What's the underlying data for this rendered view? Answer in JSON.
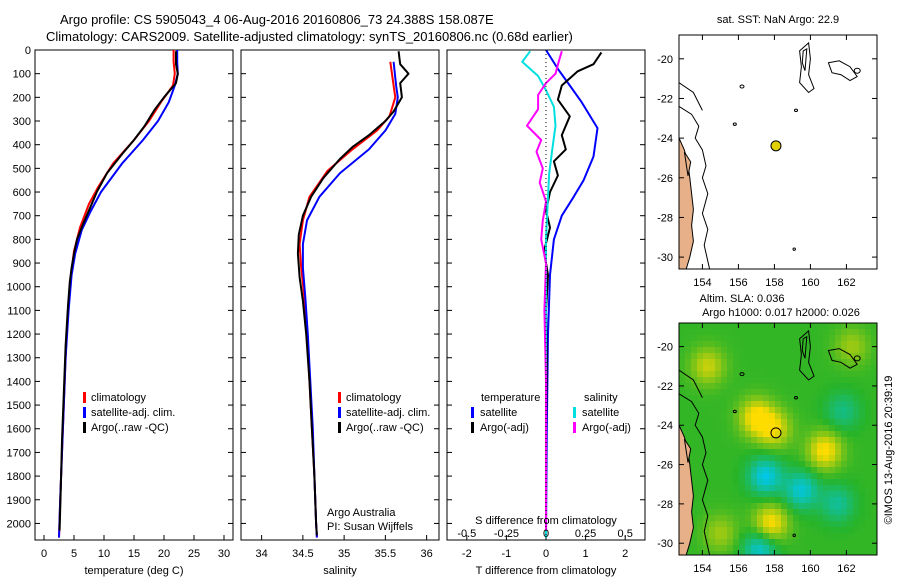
{
  "header": {
    "line1": "Argo profile: CS 5905043_4 06-Aug-2016 20160806_73 24.388S 158.087E",
    "line2": "Climatology: CARS2009. Satellite-adjusted climatology: synTS_20160806.nc (0.68d earlier)"
  },
  "colors": {
    "climatology": "#ff0000",
    "satellite": "#0000ff",
    "argo": "#000000",
    "sal_satellite": "#00e0e0",
    "sal_argo": "#ff00ff",
    "land": "#e8b088",
    "dot": "#e0d000"
  },
  "depth_ticks": [
    0,
    100,
    200,
    300,
    400,
    500,
    600,
    700,
    800,
    900,
    1000,
    1100,
    1200,
    1300,
    1400,
    1500,
    1600,
    1700,
    1800,
    1900,
    2000
  ],
  "chart_data": [
    {
      "type": "line",
      "xlabel": "temperature (deg C)",
      "xlim": [
        -1.5,
        31.5
      ],
      "xticks": [
        0,
        5,
        10,
        15,
        20,
        25,
        30
      ],
      "ylim": [
        0,
        2070
      ],
      "legend": [
        "climatology",
        "satellite-adj. clim.",
        "Argo(..raw -QC)"
      ],
      "series": [
        {
          "name": "climatology",
          "color": "#ff0000",
          "points": [
            [
              21.6,
              0
            ],
            [
              21.6,
              50
            ],
            [
              21.8,
              100
            ],
            [
              21.5,
              150
            ],
            [
              19.5,
              220
            ],
            [
              17.5,
              300
            ],
            [
              15.0,
              380
            ],
            [
              11.5,
              480
            ],
            [
              9.0,
              580
            ],
            [
              7.5,
              650
            ],
            [
              6.0,
              750
            ],
            [
              5.0,
              850
            ],
            [
              4.5,
              950
            ],
            [
              4.0,
              1100
            ],
            [
              3.6,
              1300
            ],
            [
              3.3,
              1500
            ],
            [
              3.0,
              1700
            ],
            [
              2.7,
              1900
            ],
            [
              2.5,
              2060
            ]
          ]
        },
        {
          "name": "satellite-adj. clim.",
          "color": "#0000ff",
          "points": [
            [
              22.2,
              0
            ],
            [
              22.2,
              50
            ],
            [
              22.3,
              100
            ],
            [
              21.8,
              150
            ],
            [
              20.8,
              220
            ],
            [
              19.0,
              300
            ],
            [
              16.5,
              380
            ],
            [
              13.0,
              480
            ],
            [
              9.5,
              600
            ],
            [
              7.8,
              680
            ],
            [
              6.3,
              760
            ],
            [
              5.2,
              860
            ],
            [
              4.6,
              950
            ],
            [
              4.1,
              1100
            ],
            [
              3.6,
              1300
            ],
            [
              3.3,
              1500
            ],
            [
              3.0,
              1700
            ],
            [
              2.7,
              1900
            ],
            [
              2.5,
              2060
            ]
          ]
        },
        {
          "name": "Argo(..raw -QC)",
          "color": "#000000",
          "points": [
            [
              22.0,
              5
            ],
            [
              22.0,
              60
            ],
            [
              22.3,
              100
            ],
            [
              22.0,
              140
            ],
            [
              20.0,
              200
            ],
            [
              18.5,
              250
            ],
            [
              16.8,
              320
            ],
            [
              15.0,
              380
            ],
            [
              13.0,
              440
            ],
            [
              10.5,
              520
            ],
            [
              8.8,
              600
            ],
            [
              7.8,
              660
            ],
            [
              6.6,
              730
            ],
            [
              5.5,
              800
            ],
            [
              5.0,
              860
            ],
            [
              4.6,
              920
            ],
            [
              4.3,
              980
            ],
            [
              4.0,
              1080
            ],
            [
              3.6,
              1250
            ],
            [
              3.3,
              1450
            ],
            [
              3.0,
              1650
            ],
            [
              2.8,
              1850
            ],
            [
              2.6,
              2030
            ]
          ]
        }
      ]
    },
    {
      "type": "line",
      "xlabel": "salinity",
      "xlim": [
        33.75,
        36.15
      ],
      "xticks": [
        34,
        34.5,
        35,
        35.5,
        36
      ],
      "xticklabels": [
        "34",
        "34.5",
        "35",
        "35.5",
        "36"
      ],
      "ylim": [
        0,
        2070
      ],
      "legend": [
        "climatology",
        "satellite-adj. clim.",
        "Argo(..raw -QC)"
      ],
      "annotation": [
        "Argo Australia",
        "PI: Susan Wijffels"
      ],
      "series": [
        {
          "name": "climatology",
          "color": "#ff0000",
          "points": [
            [
              35.56,
              50
            ],
            [
              35.6,
              150
            ],
            [
              35.62,
              200
            ],
            [
              35.55,
              280
            ],
            [
              35.4,
              340
            ],
            [
              35.1,
              420
            ],
            [
              34.8,
              510
            ],
            [
              34.58,
              620
            ],
            [
              34.5,
              720
            ],
            [
              34.46,
              820
            ],
            [
              34.48,
              920
            ],
            [
              34.52,
              1050
            ],
            [
              34.55,
              1200
            ],
            [
              34.58,
              1400
            ],
            [
              34.61,
              1600
            ],
            [
              34.64,
              1800
            ],
            [
              34.66,
              2000
            ],
            [
              34.67,
              2060
            ]
          ]
        },
        {
          "name": "satellite-adj. clim.",
          "color": "#0000ff",
          "points": [
            [
              35.6,
              50
            ],
            [
              35.63,
              150
            ],
            [
              35.65,
              200
            ],
            [
              35.62,
              270
            ],
            [
              35.5,
              340
            ],
            [
              35.3,
              420
            ],
            [
              34.95,
              520
            ],
            [
              34.7,
              620
            ],
            [
              34.55,
              720
            ],
            [
              34.5,
              820
            ],
            [
              34.5,
              920
            ],
            [
              34.53,
              1050
            ],
            [
              34.56,
              1200
            ],
            [
              34.59,
              1400
            ],
            [
              34.62,
              1600
            ],
            [
              34.64,
              1800
            ],
            [
              34.66,
              2000
            ],
            [
              34.67,
              2060
            ]
          ]
        },
        {
          "name": "Argo(..raw -QC)",
          "color": "#000000",
          "points": [
            [
              35.66,
              5
            ],
            [
              35.68,
              60
            ],
            [
              35.78,
              100
            ],
            [
              35.68,
              140
            ],
            [
              35.7,
              200
            ],
            [
              35.6,
              260
            ],
            [
              35.5,
              300
            ],
            [
              35.3,
              360
            ],
            [
              35.1,
              410
            ],
            [
              34.95,
              460
            ],
            [
              34.75,
              540
            ],
            [
              34.6,
              620
            ],
            [
              34.5,
              700
            ],
            [
              34.45,
              780
            ],
            [
              34.44,
              860
            ],
            [
              34.46,
              960
            ],
            [
              34.5,
              1060
            ],
            [
              34.54,
              1200
            ],
            [
              34.58,
              1400
            ],
            [
              34.61,
              1600
            ],
            [
              34.64,
              1800
            ],
            [
              34.66,
              2000
            ],
            [
              34.67,
              2050
            ]
          ]
        }
      ]
    },
    {
      "type": "line",
      "xlabel": "T difference from climatology",
      "xlabel_top": "S difference from climatology",
      "xlim": [
        -2.5,
        2.5
      ],
      "xticks": [
        -2,
        -1,
        0,
        1,
        2
      ],
      "top_ticks": [
        -0.5,
        -0.25,
        0,
        0.25,
        0.5
      ],
      "top_ticklabels": [
        "-0.5",
        "-0.25",
        "0",
        "0.25",
        "0.5"
      ],
      "ylim": [
        0,
        2070
      ],
      "legend_left": [
        "temperature",
        "satellite",
        "Argo(-adj)"
      ],
      "legend_right": [
        "salinity",
        "satellite",
        "Argo(-adj)"
      ],
      "series": [
        {
          "name": "satellite",
          "color": "#0000ff",
          "points": [
            [
              0,
              0
            ],
            [
              0.3,
              80
            ],
            [
              0.6,
              150
            ],
            [
              0.9,
              220
            ],
            [
              1.3,
              330
            ],
            [
              1.2,
              450
            ],
            [
              0.95,
              550
            ],
            [
              0.7,
              620
            ],
            [
              0.4,
              700
            ],
            [
              0.2,
              800
            ],
            [
              0.1,
              950
            ],
            [
              0.05,
              1200
            ],
            [
              0.02,
              1600
            ],
            [
              0,
              2060
            ]
          ]
        },
        {
          "name": "Argo(-adj)",
          "color": "#000000",
          "points": [
            [
              1.4,
              10
            ],
            [
              1.2,
              60
            ],
            [
              0.8,
              90
            ],
            [
              0.4,
              150
            ],
            [
              0.3,
              210
            ],
            [
              0.6,
              280
            ],
            [
              0.4,
              360
            ],
            [
              0.5,
              420
            ],
            [
              0.2,
              470
            ],
            [
              0.3,
              530
            ],
            [
              0.1,
              600
            ],
            [
              0.0,
              680
            ],
            [
              0.1,
              750
            ],
            [
              -0.05,
              850
            ],
            [
              0.05,
              950
            ],
            [
              0.0,
              1100
            ],
            [
              0.02,
              1300
            ],
            [
              0.0,
              1600
            ],
            [
              0.0,
              2030
            ]
          ]
        },
        {
          "name": "satellite",
          "color": "#00e0e0",
          "axis": "salinity",
          "points": [
            [
              -0.1,
              5
            ],
            [
              -0.15,
              50
            ],
            [
              -0.05,
              110
            ],
            [
              0.0,
              170
            ],
            [
              0.05,
              240
            ],
            [
              0.06,
              320
            ],
            [
              0.04,
              420
            ],
            [
              0.02,
              520
            ],
            [
              0.01,
              650
            ],
            [
              0.0,
              800
            ],
            [
              0.0,
              2060
            ]
          ]
        },
        {
          "name": "Argo(-adj)",
          "color": "#ff00ff",
          "axis": "salinity",
          "points": [
            [
              0.1,
              5
            ],
            [
              0.08,
              50
            ],
            [
              0.06,
              100
            ],
            [
              0.0,
              140
            ],
            [
              -0.05,
              190
            ],
            [
              -0.05,
              250
            ],
            [
              -0.12,
              320
            ],
            [
              -0.03,
              380
            ],
            [
              -0.06,
              430
            ],
            [
              -0.02,
              500
            ],
            [
              -0.04,
              560
            ],
            [
              0.0,
              640
            ],
            [
              -0.02,
              720
            ],
            [
              -0.03,
              800
            ],
            [
              0.0,
              900
            ],
            [
              -0.01,
              1100
            ],
            [
              0.0,
              1400
            ],
            [
              0.0,
              2030
            ]
          ]
        }
      ]
    },
    {
      "type": "map",
      "title": "sat. SST: NaN Argo: 22.9",
      "xlim": [
        152.7,
        163.7
      ],
      "ylim": [
        -30.6,
        -18.8
      ],
      "xticks": [
        154,
        156,
        158,
        160,
        162
      ],
      "yticks": [
        -20,
        -22,
        -24,
        -26,
        -28,
        -30
      ],
      "argo_position": [
        158.087,
        -24.388
      ]
    },
    {
      "type": "heatmap",
      "title_line1": "Altim. SLA: 0.036",
      "title_line2": "Argo h1000: 0.017 h2000: 0.026",
      "xlim": [
        152.7,
        163.7
      ],
      "ylim": [
        -30.6,
        -18.8
      ],
      "xticks": [
        154,
        156,
        158,
        160,
        162
      ],
      "yticks": [
        -20,
        -22,
        -24,
        -26,
        -28,
        -30
      ],
      "argo_position": [
        158.087,
        -24.388
      ],
      "field_blobs": [
        {
          "lon": 157.0,
          "lat": -23.6,
          "v": 1.0
        },
        {
          "lon": 158.0,
          "lat": -24.2,
          "v": 0.8
        },
        {
          "lon": 160.8,
          "lat": -25.3,
          "v": 1.0
        },
        {
          "lon": 157.8,
          "lat": -29.0,
          "v": 1.0
        },
        {
          "lon": 154.3,
          "lat": -21.0,
          "v": 0.7
        },
        {
          "lon": 155.0,
          "lat": -29.5,
          "v": 0.5
        },
        {
          "lon": 157.5,
          "lat": -26.6,
          "v": -1.0
        },
        {
          "lon": 159.5,
          "lat": -27.3,
          "v": -0.9
        },
        {
          "lon": 161.5,
          "lat": -28.0,
          "v": -0.6
        },
        {
          "lon": 157.2,
          "lat": -30.3,
          "v": -0.9
        },
        {
          "lon": 161.8,
          "lat": -23.3,
          "v": -0.5
        },
        {
          "lon": 162.3,
          "lat": -20.0,
          "v": 0.5
        }
      ]
    }
  ],
  "credit": "©IMOS 13-Aug-2016 20:39:19"
}
